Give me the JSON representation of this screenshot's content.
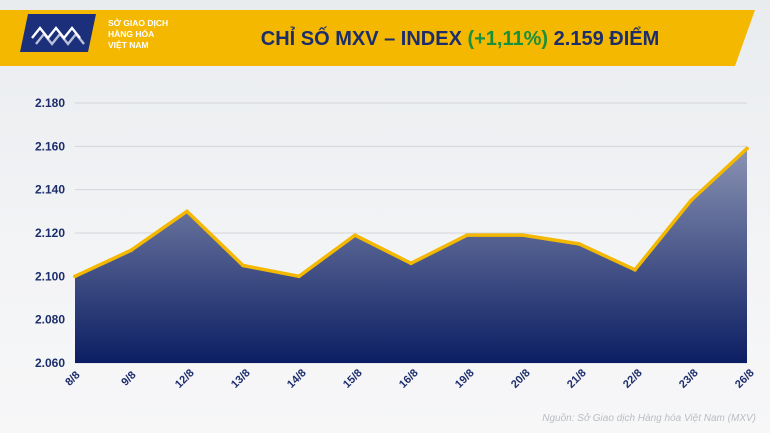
{
  "header": {
    "logo_lines": [
      "SỞ GIAO DỊCH",
      "HÀNG HÓA",
      "VIỆT NAM"
    ],
    "title_prefix": "CHỈ SỐ MXV – INDEX",
    "title_change": "(+1,11%)",
    "title_value": "2.159 ĐIỂM"
  },
  "source_note": "Nguồn: Sở Giao dịch Hàng hóa Việt Nam (MXV)",
  "colors": {
    "header_band": "#f4b800",
    "title_text": "#1c2d6b",
    "change_text": "#1a8f3c",
    "area_top": "#8a93b3",
    "area_bottom": "#0c1e63",
    "line": "#f4b800",
    "logo_box": "#1b2f7a"
  },
  "chart_data": {
    "type": "area",
    "title": "",
    "xlabel": "",
    "ylabel": "",
    "categories": [
      "8/8",
      "9/8",
      "12/8",
      "13/8",
      "14/8",
      "15/8",
      "16/8",
      "19/8",
      "20/8",
      "21/8",
      "22/8",
      "23/8",
      "26/8"
    ],
    "values": [
      2100,
      2112,
      2130,
      2105,
      2100,
      2119,
      2106,
      2119,
      2119,
      2115,
      2103,
      2135,
      2159
    ],
    "ylim": [
      2060,
      2180
    ],
    "yticks": [
      2060,
      2080,
      2100,
      2120,
      2140,
      2160,
      2180
    ],
    "ytick_labels": [
      "2.060",
      "2.080",
      "2.100",
      "2.120",
      "2.140",
      "2.160",
      "2.180"
    ],
    "grid": true,
    "legend": "none"
  }
}
